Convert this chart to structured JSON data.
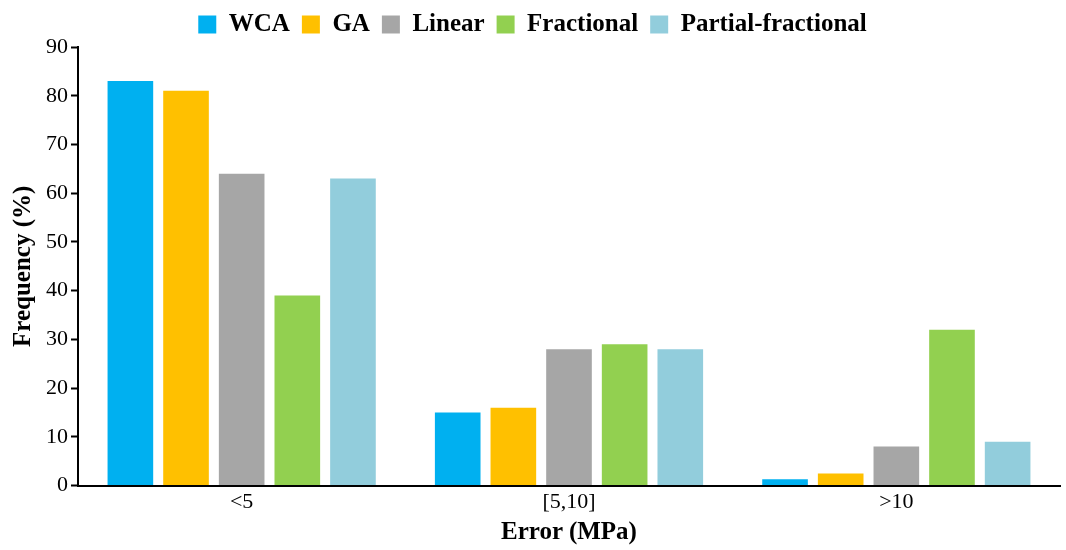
{
  "chart_data": {
    "type": "bar",
    "xlabel": "Error (MPa)",
    "ylabel": "Frequency (%)",
    "categories": [
      "<5",
      "[5,10]",
      ">10"
    ],
    "series": [
      {
        "name": "WCA",
        "color": "#00b0f0",
        "values": [
          83,
          15,
          1.3
        ]
      },
      {
        "name": "GA",
        "color": "#ffc000",
        "values": [
          81,
          16,
          2.5
        ]
      },
      {
        "name": "Linear",
        "color": "#a6a6a6",
        "values": [
          64,
          28,
          8
        ]
      },
      {
        "name": "Fractional",
        "color": "#92d050",
        "values": [
          39,
          29,
          32
        ]
      },
      {
        "name": "Partial-fractional",
        "color": "#92cddc",
        "values": [
          63,
          28,
          9
        ]
      }
    ],
    "ylim": [
      0,
      90
    ],
    "yticks": [
      0,
      10,
      20,
      30,
      40,
      50,
      60,
      70,
      80,
      90
    ],
    "grid": false,
    "legend": "top"
  }
}
